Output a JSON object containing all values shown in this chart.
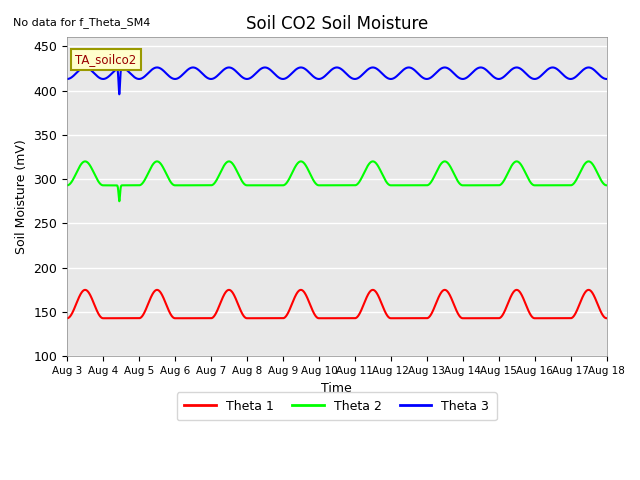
{
  "title": "Soil CO2 Soil Moisture",
  "no_data_text": "No data for f_Theta_SM4",
  "ylabel": "Soil Moisture (mV)",
  "xlabel": "Time",
  "ylim": [
    100,
    460
  ],
  "yticks": [
    100,
    150,
    200,
    250,
    300,
    350,
    400,
    450
  ],
  "xtick_labels": [
    "Aug 3",
    "Aug 4",
    "Aug 5",
    "Aug 6",
    "Aug 7",
    "Aug 8",
    "Aug 9",
    "Aug 10",
    "Aug 11",
    "Aug 12",
    "Aug 13",
    "Aug 14",
    "Aug 15",
    "Aug 16",
    "Aug 17",
    "Aug 18"
  ],
  "legend_labels": [
    "Theta 1",
    "Theta 2",
    "Theta 3"
  ],
  "bg_color": "#e8e8e8",
  "ta_soilco2_label": "TA_soilco2",
  "theta1_base": 143,
  "theta1_peak": 175,
  "theta2_base": 293,
  "theta2_peak": 320,
  "theta3_base": 413,
  "theta3_peak": 426,
  "num_days": 15,
  "spike_day_blue": 1.45,
  "spike_day_green": 1.45,
  "spike_amplitude_blue": 30,
  "spike_amplitude_green": 18
}
